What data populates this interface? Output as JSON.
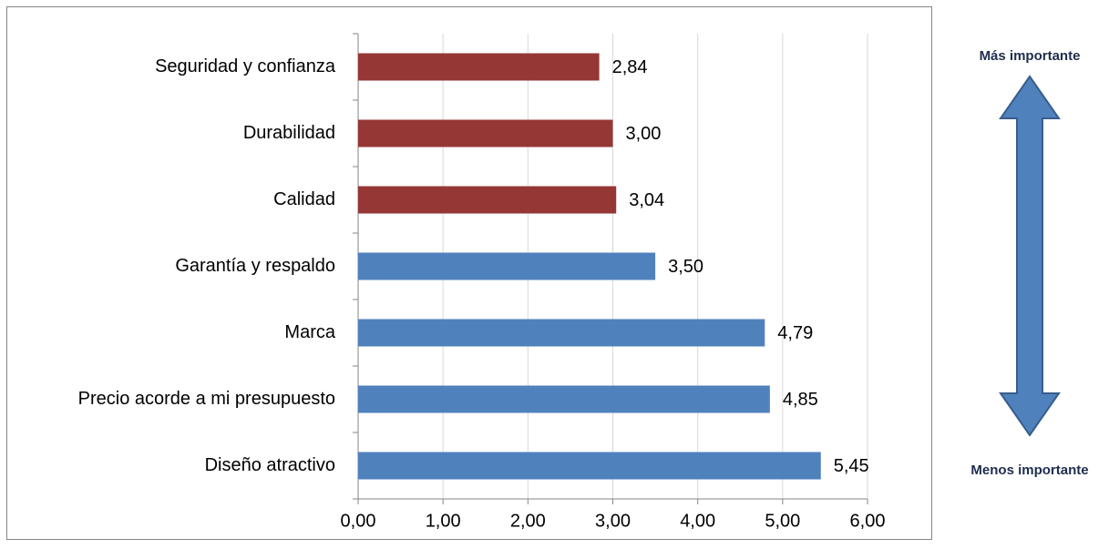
{
  "chart_data": {
    "type": "barh",
    "categories": [
      "Seguridad y confianza",
      "Durabilidad",
      "Calidad",
      "Garantía y respaldo",
      "Marca",
      "Precio acorde a mi presupuesto",
      "Diseño atractivo"
    ],
    "values": [
      2.84,
      3.0,
      3.04,
      3.5,
      4.79,
      4.85,
      5.45
    ],
    "value_labels": [
      "2,84",
      "3,00",
      "3,04",
      "3,50",
      "4,79",
      "4,85",
      "5,45"
    ],
    "colors": [
      "#953735",
      "#953735",
      "#953735",
      "#4f81bd",
      "#4f81bd",
      "#4f81bd",
      "#4f81bd"
    ],
    "xlim": [
      0,
      6
    ],
    "xticks": [
      {
        "value": 0,
        "label": "0,00"
      },
      {
        "value": 1,
        "label": "1,00"
      },
      {
        "value": 2,
        "label": "2,00"
      },
      {
        "value": 3,
        "label": "3,00"
      },
      {
        "value": 4,
        "label": "4,00"
      },
      {
        "value": 5,
        "label": "5,00"
      },
      {
        "value": 6,
        "label": "6,00"
      }
    ],
    "grid": true,
    "annotations": [
      "Más importante",
      "Menos importante"
    ]
  }
}
